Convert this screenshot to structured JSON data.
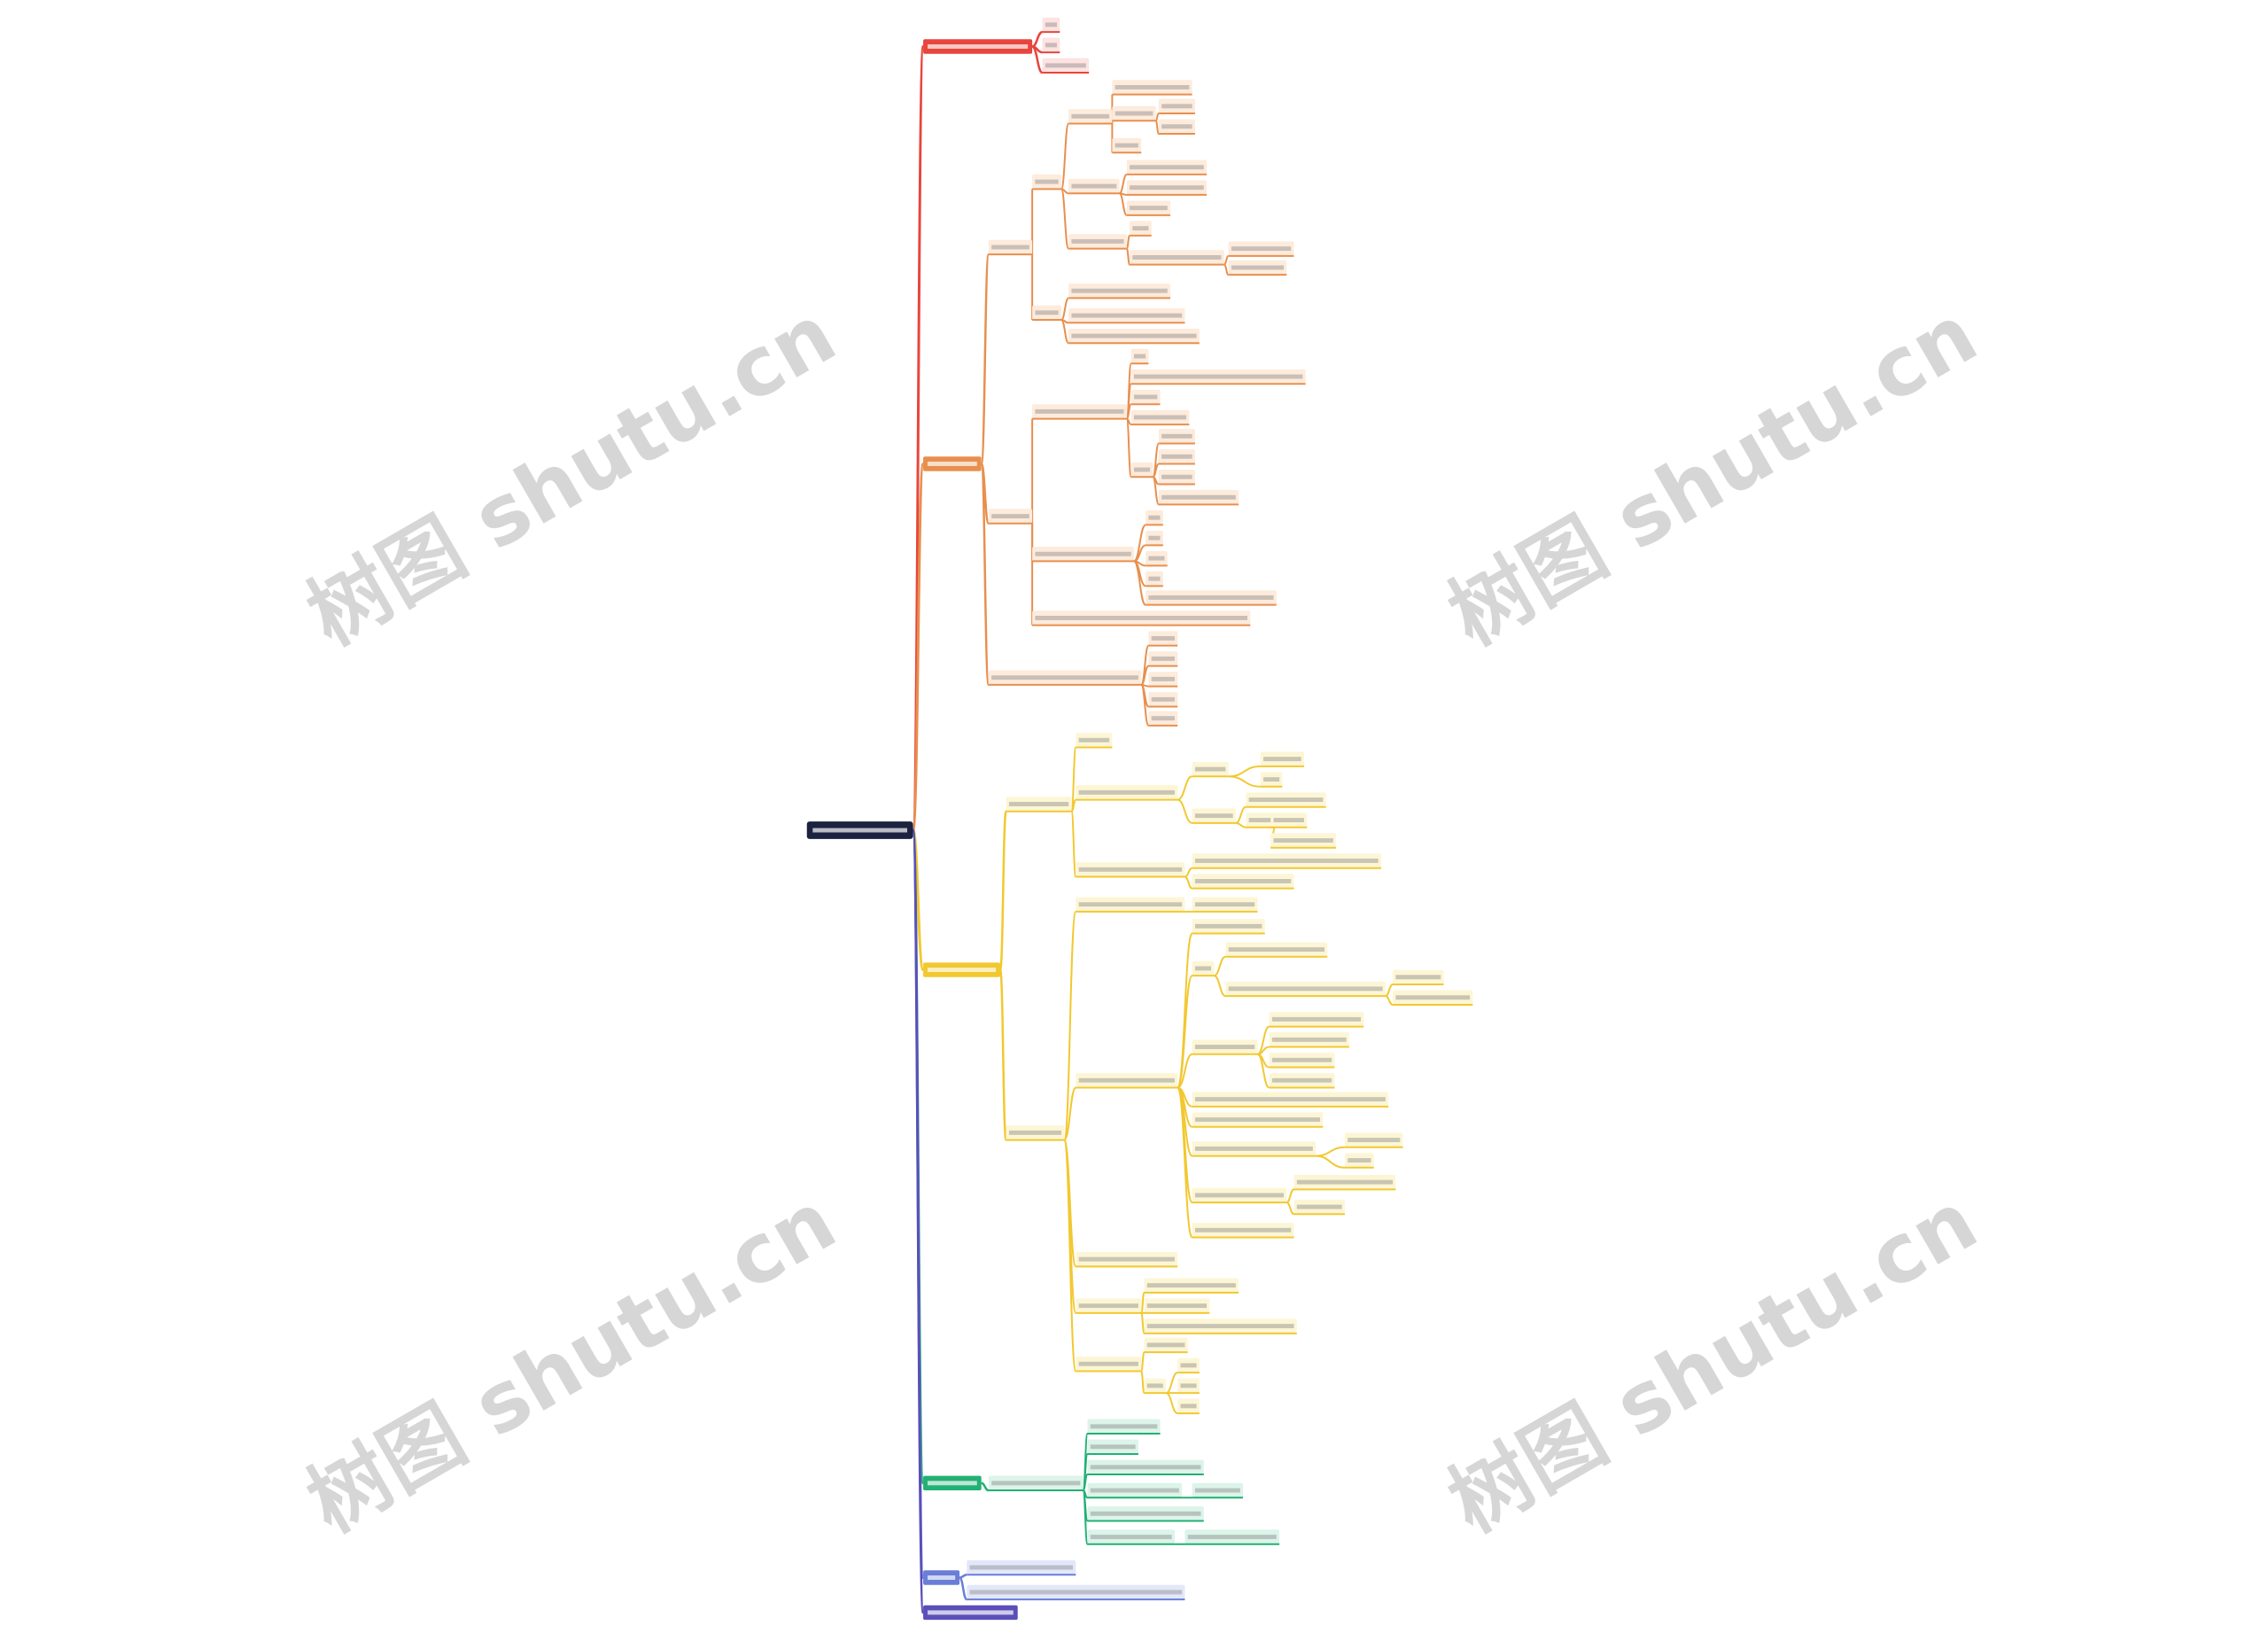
{
  "watermarks": [
    "树图 shutu.cn",
    "树图 shutu.cn",
    "树图 shutu.cn",
    "树图 shutu.cn"
  ]
}
